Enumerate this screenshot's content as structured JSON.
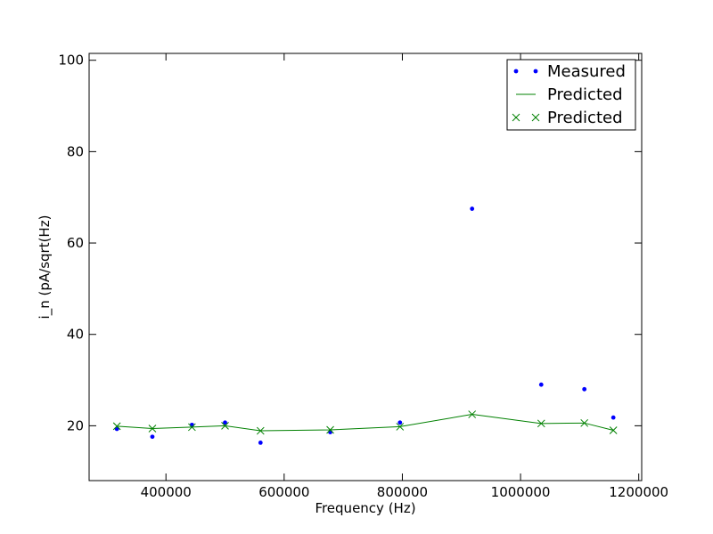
{
  "chart_data": {
    "type": "scatter",
    "title": "",
    "xlabel": "Frequency (Hz)",
    "ylabel": "i_n (pA/sqrt(Hz)",
    "xlim": [
      270000,
      1205000
    ],
    "ylim": [
      8,
      101.5
    ],
    "xticks": [
      400000,
      600000,
      800000,
      1000000,
      1200000
    ],
    "xtick_labels": [
      "400000",
      "600000",
      "800000",
      "1000000",
      "1200000"
    ],
    "yticks": [
      20,
      40,
      60,
      80,
      100
    ],
    "ytick_labels": [
      "20",
      "40",
      "60",
      "80",
      "100"
    ],
    "grid": false,
    "legend_position": "top-right",
    "series": [
      {
        "name": "Measured",
        "style": "points",
        "color": "#0000ff",
        "x": [
          317000,
          377000,
          444000,
          500000,
          560000,
          678000,
          796000,
          918000,
          1035000,
          1108000,
          1157000
        ],
        "y": [
          19.3,
          17.6,
          20.2,
          20.7,
          16.3,
          18.6,
          20.7,
          67.5,
          29.0,
          28.0,
          21.8
        ]
      },
      {
        "name": "Predicted",
        "style": "line",
        "color": "#008000",
        "x": [
          317000,
          377000,
          444000,
          500000,
          560000,
          678000,
          796000,
          918000,
          1035000,
          1108000,
          1157000
        ],
        "y": [
          19.9,
          19.4,
          19.7,
          20.0,
          18.9,
          19.1,
          19.8,
          22.5,
          20.5,
          20.6,
          19.0
        ]
      },
      {
        "name": "Predicted",
        "style": "x-markers",
        "color": "#008000",
        "x": [
          317000,
          377000,
          444000,
          500000,
          560000,
          678000,
          796000,
          918000,
          1035000,
          1108000,
          1157000
        ],
        "y": [
          19.9,
          19.4,
          19.7,
          20.0,
          18.9,
          19.1,
          19.8,
          22.5,
          20.5,
          20.6,
          19.0
        ]
      }
    ]
  }
}
